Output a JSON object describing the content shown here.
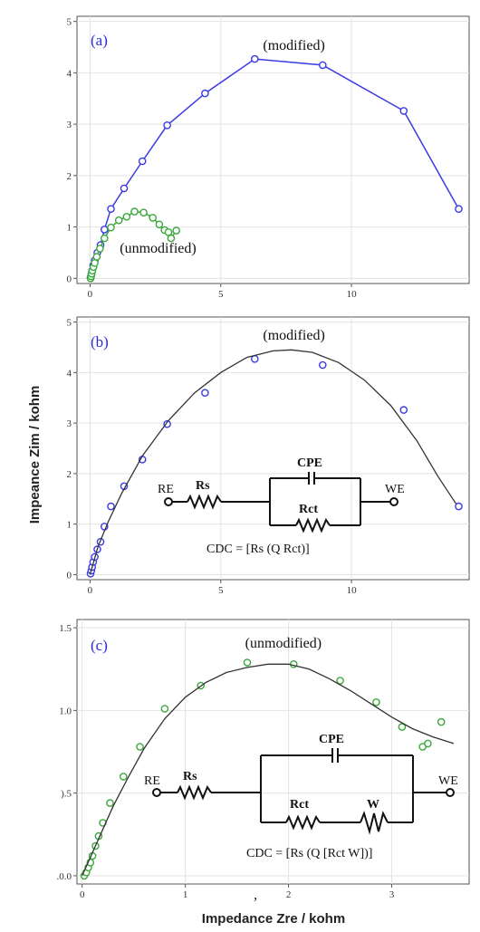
{
  "axes": {
    "ylabel": "Impeance Zim / kohm",
    "xlabel": "Impedance Zre / kohm"
  },
  "colors": {
    "modified": "#3a3ae6",
    "unmodified": "#3aa83a",
    "fit": "#333333",
    "panel_label": "#2a2adb",
    "grid": "#e3e3e3",
    "frame": "#555555"
  },
  "chart_data": [
    {
      "type": "scatter",
      "panel": "(a)",
      "xlim": [
        -0.5,
        14.5
      ],
      "ylim": [
        -0.1,
        5.1
      ],
      "xticks": [
        0,
        5,
        10
      ],
      "yticks": [
        0,
        1,
        2,
        3,
        4,
        5
      ],
      "xtick_labels": [
        "0",
        "5",
        "10"
      ],
      "ytick_labels": [
        "0",
        "1",
        "2",
        "3",
        "4",
        "5"
      ],
      "grid": true,
      "annotations": [
        {
          "text": "(modified)",
          "x": 7.8,
          "y": 4.45
        },
        {
          "text": "(unmodified)",
          "x": 2.6,
          "y": 0.5
        }
      ],
      "series": [
        {
          "key": "modified",
          "lines": true,
          "x": [
            0.02,
            0.05,
            0.08,
            0.12,
            0.18,
            0.28,
            0.4,
            0.55,
            0.8,
            1.3,
            2.0,
            2.95,
            4.4,
            6.3,
            8.9,
            12.0,
            14.1
          ],
          "y": [
            0.02,
            0.08,
            0.15,
            0.25,
            0.35,
            0.5,
            0.65,
            0.95,
            1.35,
            1.75,
            2.28,
            2.98,
            3.6,
            4.27,
            4.15,
            3.26,
            1.35
          ]
        },
        {
          "key": "unmodified",
          "lines": true,
          "x": [
            0.02,
            0.04,
            0.06,
            0.09,
            0.13,
            0.18,
            0.26,
            0.38,
            0.55,
            0.8,
            1.1,
            1.4,
            1.7,
            2.05,
            2.4,
            2.65,
            2.85,
            3.0,
            3.1,
            3.3
          ],
          "y": [
            0.0,
            0.04,
            0.09,
            0.15,
            0.22,
            0.3,
            0.42,
            0.58,
            0.78,
            0.99,
            1.13,
            1.2,
            1.3,
            1.28,
            1.18,
            1.05,
            0.94,
            0.9,
            0.78,
            0.93
          ]
        }
      ]
    },
    {
      "type": "scatter",
      "panel": "(b)",
      "xlim": [
        -0.5,
        14.5
      ],
      "ylim": [
        -0.1,
        5.1
      ],
      "xticks": [
        0,
        5,
        10
      ],
      "yticks": [
        0,
        1,
        2,
        3,
        4,
        5
      ],
      "xtick_labels": [
        "0",
        "5",
        "10"
      ],
      "ytick_labels": [
        "0",
        "1",
        "2",
        "3",
        "4",
        "5"
      ],
      "grid": true,
      "annotations": [
        {
          "text": "(modified)",
          "x": 7.8,
          "y": 4.65
        }
      ],
      "circuit": {
        "re": "RE",
        "we": "WE",
        "rs": "Rs",
        "cpe": "CPE",
        "rct": "Rct",
        "formula": "CDC = [Rs (Q Rct)]"
      },
      "series": [
        {
          "key": "modified",
          "lines": false,
          "x": [
            0.02,
            0.05,
            0.08,
            0.12,
            0.18,
            0.28,
            0.4,
            0.55,
            0.8,
            1.3,
            2.0,
            2.95,
            4.4,
            6.3,
            8.9,
            12.0,
            14.1
          ],
          "y": [
            0.02,
            0.08,
            0.15,
            0.25,
            0.35,
            0.5,
            0.65,
            0.95,
            1.35,
            1.75,
            2.28,
            2.98,
            3.6,
            4.27,
            4.15,
            3.26,
            1.35
          ]
        },
        {
          "key": "fit",
          "lines": true,
          "x": [
            0.0,
            0.3,
            0.7,
            1.2,
            2.0,
            3.0,
            4.0,
            5.0,
            6.0,
            7.0,
            7.7,
            8.5,
            9.5,
            10.5,
            11.5,
            12.5,
            13.3,
            14.0
          ],
          "y": [
            0.0,
            0.55,
            1.05,
            1.6,
            2.35,
            3.05,
            3.6,
            4.0,
            4.3,
            4.43,
            4.45,
            4.4,
            4.2,
            3.85,
            3.35,
            2.65,
            1.95,
            1.4
          ]
        }
      ]
    },
    {
      "type": "scatter",
      "panel": "(c)",
      "xlim": [
        -0.05,
        3.75
      ],
      "ylim": [
        -0.05,
        1.55
      ],
      "xticks": [
        0,
        1,
        2,
        3
      ],
      "yticks": [
        0.0,
        0.5,
        1.0,
        1.5
      ],
      "xtick_labels": [
        "0",
        "1",
        "2",
        "3"
      ],
      "ytick_labels": [
        ".0.0",
        ").5",
        "1.0",
        "1.5"
      ],
      "grid": true,
      "annotations": [
        {
          "text": "(unmodified)",
          "x": 1.95,
          "y": 1.38
        },
        {
          "text": ",",
          "x": 1.68,
          "y": -0.14
        }
      ],
      "circuit": {
        "re": "RE",
        "we": "WE",
        "rs": "Rs",
        "cpe": "CPE",
        "rct": "Rct",
        "w": "W",
        "formula": "CDC = [Rs (Q [Rct W])]"
      },
      "series": [
        {
          "key": "unmodified",
          "lines": false,
          "x": [
            0.02,
            0.04,
            0.06,
            0.08,
            0.1,
            0.13,
            0.16,
            0.2,
            0.27,
            0.4,
            0.56,
            0.8,
            1.15,
            1.6,
            2.05,
            2.5,
            2.85,
            3.1,
            3.3,
            3.35,
            3.48
          ],
          "y": [
            0.0,
            0.02,
            0.05,
            0.08,
            0.12,
            0.18,
            0.24,
            0.32,
            0.44,
            0.6,
            0.78,
            1.01,
            1.15,
            1.29,
            1.28,
            1.18,
            1.05,
            0.9,
            0.78,
            0.8,
            0.93
          ]
        },
        {
          "key": "fit",
          "lines": true,
          "x": [
            0.0,
            0.1,
            0.2,
            0.3,
            0.45,
            0.6,
            0.8,
            1.0,
            1.2,
            1.4,
            1.6,
            1.8,
            2.0,
            2.2,
            2.4,
            2.6,
            2.8,
            3.0,
            3.2,
            3.4,
            3.6
          ],
          "y": [
            0.0,
            0.14,
            0.28,
            0.42,
            0.6,
            0.77,
            0.95,
            1.08,
            1.17,
            1.23,
            1.26,
            1.28,
            1.28,
            1.25,
            1.19,
            1.12,
            1.04,
            0.96,
            0.89,
            0.84,
            0.8
          ]
        }
      ]
    }
  ]
}
